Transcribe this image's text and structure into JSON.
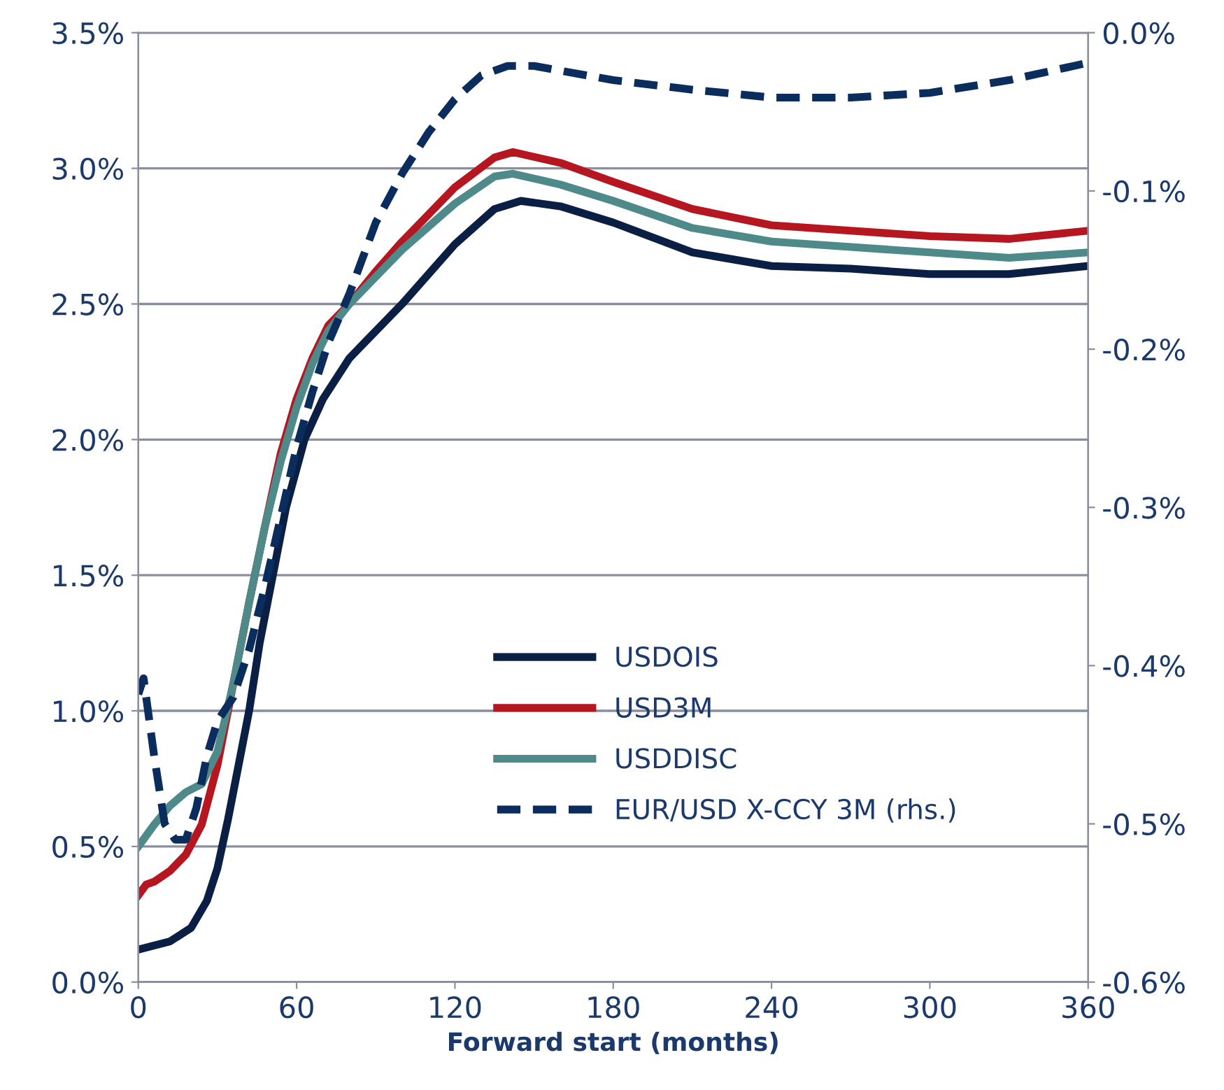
{
  "chart_data": {
    "type": "line",
    "xlabel": "Forward start (months)",
    "xlim": [
      0,
      360
    ],
    "xticks": [
      0,
      60,
      120,
      180,
      240,
      300,
      360
    ],
    "ylim": [
      0,
      3.5
    ],
    "yticks": [
      {
        "value": 0,
        "label": "0.0%"
      },
      {
        "value": 0.5,
        "label": "0.5%"
      },
      {
        "value": 1,
        "label": "1.0%"
      },
      {
        "value": 1.5,
        "label": "1.5%"
      },
      {
        "value": 2,
        "label": "2.0%"
      },
      {
        "value": 2.5,
        "label": "2.5%"
      },
      {
        "value": 3,
        "label": "3.0%"
      },
      {
        "value": 3.5,
        "label": "3.5%"
      }
    ],
    "y2lim": [
      -0.6,
      0
    ],
    "y2ticks": [
      {
        "value": -0.6,
        "label": "-0.6%"
      },
      {
        "value": -0.5,
        "label": "-0.5%"
      },
      {
        "value": -0.4,
        "label": "-0.4%"
      },
      {
        "value": -0.3,
        "label": "-0.3%"
      },
      {
        "value": -0.2,
        "label": "-0.2%"
      },
      {
        "value": -0.1,
        "label": "-0.1%"
      },
      {
        "value": 0,
        "label": "0.0%"
      }
    ],
    "grid": "y",
    "legend": "bottom",
    "series": [
      {
        "name": "USDOIS",
        "color": "#0b1f45",
        "x": [
          0,
          12,
          20,
          26,
          30,
          34,
          38,
          42,
          46,
          51,
          56,
          63,
          70,
          80,
          100,
          120,
          135,
          145,
          160,
          180,
          210,
          240,
          270,
          300,
          330,
          360
        ],
        "values": [
          0.12,
          0.15,
          0.2,
          0.3,
          0.42,
          0.6,
          0.8,
          1.0,
          1.25,
          1.5,
          1.75,
          2.0,
          2.15,
          2.3,
          2.5,
          2.72,
          2.85,
          2.88,
          2.86,
          2.8,
          2.69,
          2.64,
          2.63,
          2.61,
          2.61,
          2.64
        ]
      },
      {
        "name": "USD3M",
        "color": "#b5161f",
        "x": [
          0,
          3,
          6,
          12,
          18,
          24,
          30,
          36,
          42,
          48,
          54,
          60,
          66,
          72,
          80,
          90,
          100,
          120,
          135,
          142,
          160,
          180,
          210,
          240,
          270,
          300,
          330,
          360
        ],
        "values": [
          0.32,
          0.36,
          0.37,
          0.41,
          0.47,
          0.58,
          0.8,
          1.1,
          1.4,
          1.68,
          1.95,
          2.15,
          2.3,
          2.42,
          2.5,
          2.62,
          2.73,
          2.93,
          3.04,
          3.06,
          3.02,
          2.95,
          2.85,
          2.79,
          2.77,
          2.75,
          2.74,
          2.77
        ]
      },
      {
        "name": "USDDISC",
        "color": "#4f8a8b",
        "x": [
          0,
          6,
          12,
          18,
          24,
          30,
          36,
          42,
          48,
          54,
          60,
          66,
          72,
          80,
          90,
          100,
          120,
          135,
          142,
          160,
          180,
          210,
          240,
          270,
          300,
          330,
          360
        ],
        "values": [
          0.5,
          0.58,
          0.65,
          0.7,
          0.73,
          0.85,
          1.1,
          1.4,
          1.68,
          1.92,
          2.12,
          2.28,
          2.4,
          2.5,
          2.6,
          2.7,
          2.87,
          2.97,
          2.98,
          2.94,
          2.88,
          2.78,
          2.73,
          2.71,
          2.69,
          2.67,
          2.69
        ]
      },
      {
        "name": "EUR/USD X-CCY 3M (rhs.)",
        "color": "#0b2d5e",
        "axis": "y2",
        "line_style": "dashed",
        "x": [
          0,
          2,
          6,
          10,
          14,
          18,
          22,
          26,
          30,
          36,
          42,
          48,
          54,
          60,
          66,
          72,
          80,
          90,
          100,
          110,
          120,
          130,
          140,
          150,
          180,
          210,
          240,
          270,
          300,
          330,
          360
        ],
        "values": [
          -0.418,
          -0.408,
          -0.457,
          -0.5,
          -0.51,
          -0.51,
          -0.49,
          -0.457,
          -0.435,
          -0.42,
          -0.39,
          -0.35,
          -0.306,
          -0.262,
          -0.227,
          -0.196,
          -0.165,
          -0.12,
          -0.089,
          -0.063,
          -0.042,
          -0.027,
          -0.021,
          -0.021,
          -0.03,
          -0.036,
          -0.041,
          -0.041,
          -0.038,
          -0.03,
          -0.019
        ]
      }
    ]
  }
}
